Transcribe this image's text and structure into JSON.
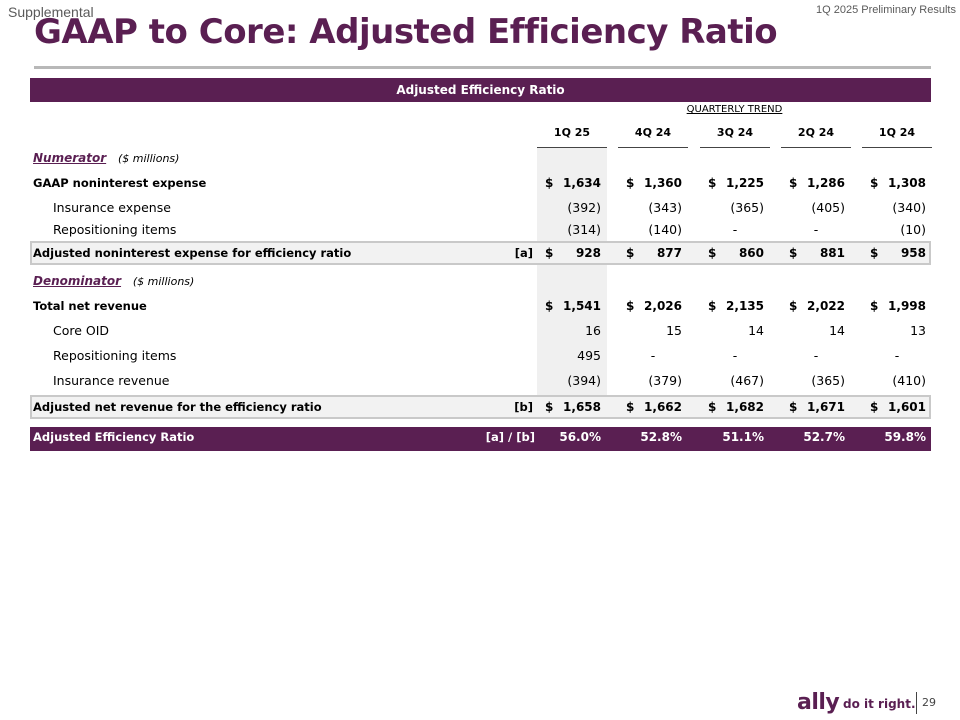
{
  "header": {
    "supplemental": "Supplemental",
    "results": "1Q 2025 Preliminary Results",
    "title": "GAAP to Core: Adjusted Efficiency Ratio"
  },
  "table": {
    "banner": "Adjusted Efficiency Ratio",
    "trend_label": "QUARTERLY TREND",
    "periods": [
      "1Q 25",
      "4Q 24",
      "3Q 24",
      "2Q 24",
      "1Q 24"
    ],
    "numerator": {
      "name": "Numerator",
      "unit": "($ millions)"
    },
    "denominator": {
      "name": "Denominator",
      "unit": "($ millions)"
    },
    "rows": [
      {
        "label": "GAAP noninterest expense",
        "values": [
          "1,634",
          "1,360",
          "1,225",
          "1,286",
          "1,308"
        ]
      },
      {
        "label": "Insurance expense",
        "values": [
          "(392)",
          "(343)",
          "(365)",
          "(405)",
          "(340)"
        ]
      },
      {
        "label": "Repositioning items",
        "values": [
          "(314)",
          "(140)",
          "-",
          "-",
          "(10)"
        ]
      },
      {
        "label": "Adjusted noninterest expense for efficiency ratio",
        "ref": "[a]",
        "values": [
          "928",
          "877",
          "860",
          "881",
          "958"
        ]
      },
      {
        "label": "Total net revenue",
        "values": [
          "1,541",
          "2,026",
          "2,135",
          "2,022",
          "1,998"
        ]
      },
      {
        "label": "Core OID",
        "values": [
          "16",
          "15",
          "14",
          "14",
          "13"
        ]
      },
      {
        "label": "Repositioning items",
        "values": [
          "495",
          "-",
          "-",
          "-",
          "-"
        ]
      },
      {
        "label": "Insurance revenue",
        "values": [
          "(394)",
          "(379)",
          "(467)",
          "(365)",
          "(410)"
        ]
      },
      {
        "label": "Adjusted net revenue for the efficiency ratio",
        "ref": "[b]",
        "values": [
          "1,658",
          "1,662",
          "1,682",
          "1,671",
          "1,601"
        ]
      },
      {
        "label": "Adjusted Efficiency Ratio",
        "ref": "[a] / [b]",
        "values": [
          "56.0%",
          "52.8%",
          "51.1%",
          "52.7%",
          "59.8%"
        ]
      }
    ],
    "currency_symbol": "$"
  },
  "footer": {
    "logo": "ally",
    "tagline": "do it right.",
    "page": "29"
  },
  "colors": {
    "brand": "#5a1f52",
    "shade": "#f0f0f0",
    "rule": "#b8b8b8"
  }
}
